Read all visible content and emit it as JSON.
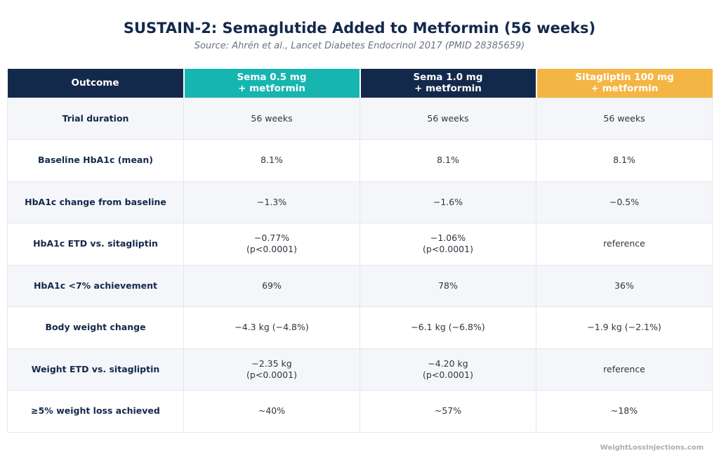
{
  "title": "SUSTAIN-2: Semaglutide Added to Metformin (56 weeks)",
  "subtitle": "Source: Ahrén et al., Lancet Diabetes Endocrinol 2017 (PMID 28385659)",
  "colors": {
    "navy": "#13294b",
    "teal": "#17b5b0",
    "gold": "#f4b544"
  },
  "headers": [
    {
      "line1": "Outcome",
      "line2": ""
    },
    {
      "line1": "Sema 0.5 mg",
      "line2": "+ metformin"
    },
    {
      "line1": "Sema 1.0 mg",
      "line2": "+ metformin"
    },
    {
      "line1": "Sitagliptin 100 mg",
      "line2": "+ metformin"
    }
  ],
  "rows": [
    {
      "label": "Trial duration",
      "cells": [
        [
          "56 weeks",
          ""
        ],
        [
          "56 weeks",
          ""
        ],
        [
          "56 weeks",
          ""
        ]
      ]
    },
    {
      "label": "Baseline HbA1c (mean)",
      "cells": [
        [
          "8.1%",
          ""
        ],
        [
          "8.1%",
          ""
        ],
        [
          "8.1%",
          ""
        ]
      ]
    },
    {
      "label": "HbA1c change from baseline",
      "cells": [
        [
          "−1.3%",
          ""
        ],
        [
          "−1.6%",
          ""
        ],
        [
          "−0.5%",
          ""
        ]
      ]
    },
    {
      "label": "HbA1c ETD vs. sitagliptin",
      "cells": [
        [
          "−0.77%",
          "(p<0.0001)"
        ],
        [
          "−1.06%",
          "(p<0.0001)"
        ],
        [
          "reference",
          ""
        ]
      ]
    },
    {
      "label": "HbA1c <7% achievement",
      "cells": [
        [
          "69%",
          ""
        ],
        [
          "78%",
          ""
        ],
        [
          "36%",
          ""
        ]
      ]
    },
    {
      "label": "Body weight change",
      "cells": [
        [
          "−4.3 kg (−4.8%)",
          ""
        ],
        [
          "−6.1 kg (−6.8%)",
          ""
        ],
        [
          "−1.9 kg (−2.1%)",
          ""
        ]
      ]
    },
    {
      "label": "Weight ETD vs. sitagliptin",
      "cells": [
        [
          "−2.35 kg",
          "(p<0.0001)"
        ],
        [
          "−4.20 kg",
          "(p<0.0001)"
        ],
        [
          "reference",
          ""
        ]
      ]
    },
    {
      "label": "≥5% weight loss achieved",
      "cells": [
        [
          "~40%",
          ""
        ],
        [
          "~57%",
          ""
        ],
        [
          "~18%",
          ""
        ]
      ]
    }
  ],
  "footer": "WeightLossInjections.com"
}
